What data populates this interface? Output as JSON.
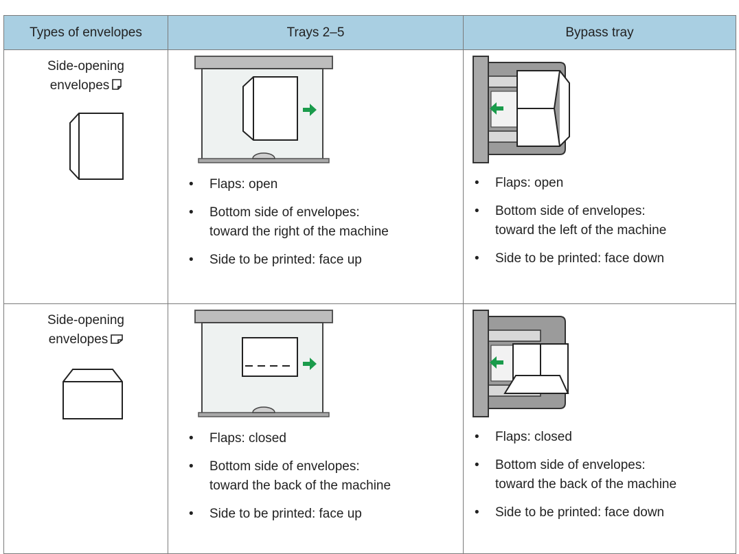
{
  "table": {
    "headers": [
      "Types of envelopes",
      "Trays 2–5",
      "Bypass tray"
    ],
    "rows": [
      {
        "type": [
          "Side-opening",
          "envelopes"
        ],
        "trays": [
          [
            "Flaps: open"
          ],
          [
            "Bottom side of envelopes:",
            "toward the right of the machine"
          ],
          [
            "Side to be printed: face up"
          ]
        ],
        "bypass": [
          [
            "Flaps: open"
          ],
          [
            "Bottom side of envelopes:",
            "toward the left of the machine"
          ],
          [
            "Side to be printed: face down"
          ]
        ]
      },
      {
        "type": [
          "Side-opening",
          "envelopes"
        ],
        "trays": [
          [
            "Flaps: closed"
          ],
          [
            "Bottom side of envelopes:",
            "toward the back of the machine"
          ],
          [
            "Side to be printed: face up"
          ]
        ],
        "bypass": [
          [
            "Flaps: closed"
          ],
          [
            "Bottom side of envelopes:",
            "toward the back of the machine"
          ],
          [
            "Side to be printed: face down"
          ]
        ]
      }
    ]
  }
}
